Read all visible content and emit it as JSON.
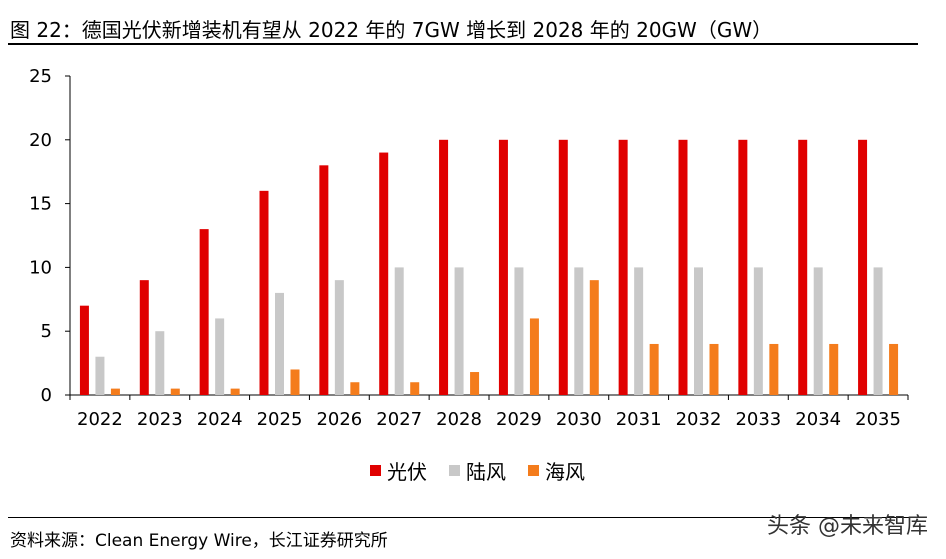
{
  "title": "图 22：德国光伏新增装机有望从 2022 年的 7GW 增长到 2028 年的 20GW（GW）",
  "source": "资料来源：Clean Energy Wire，长江证券研究所",
  "watermark": "头条 @未来智库",
  "colors": {
    "solar": "#e00000",
    "onshore": "#c8c8c8",
    "offshore": "#f47c1c"
  },
  "chart_data": {
    "type": "bar",
    "categories": [
      "2022",
      "2023",
      "2024",
      "2025",
      "2026",
      "2027",
      "2028",
      "2029",
      "2030",
      "2031",
      "2032",
      "2033",
      "2034",
      "2035"
    ],
    "series": [
      {
        "name": "光伏",
        "values": [
          7,
          9,
          13,
          16,
          18,
          19,
          20,
          20,
          20,
          20,
          20,
          20,
          20,
          20
        ]
      },
      {
        "name": "陆风",
        "values": [
          3,
          5,
          6,
          8,
          9,
          10,
          10,
          10,
          10,
          10,
          10,
          10,
          10,
          10
        ]
      },
      {
        "name": "海风",
        "values": [
          0.5,
          0.5,
          0.5,
          2,
          1,
          1,
          1.8,
          6,
          9,
          4,
          4,
          4,
          4,
          4
        ]
      }
    ],
    "ylim": [
      0,
      25
    ],
    "yticks": [
      0,
      5,
      10,
      15,
      20,
      25
    ],
    "legend": "bottom-center",
    "grid": false
  }
}
